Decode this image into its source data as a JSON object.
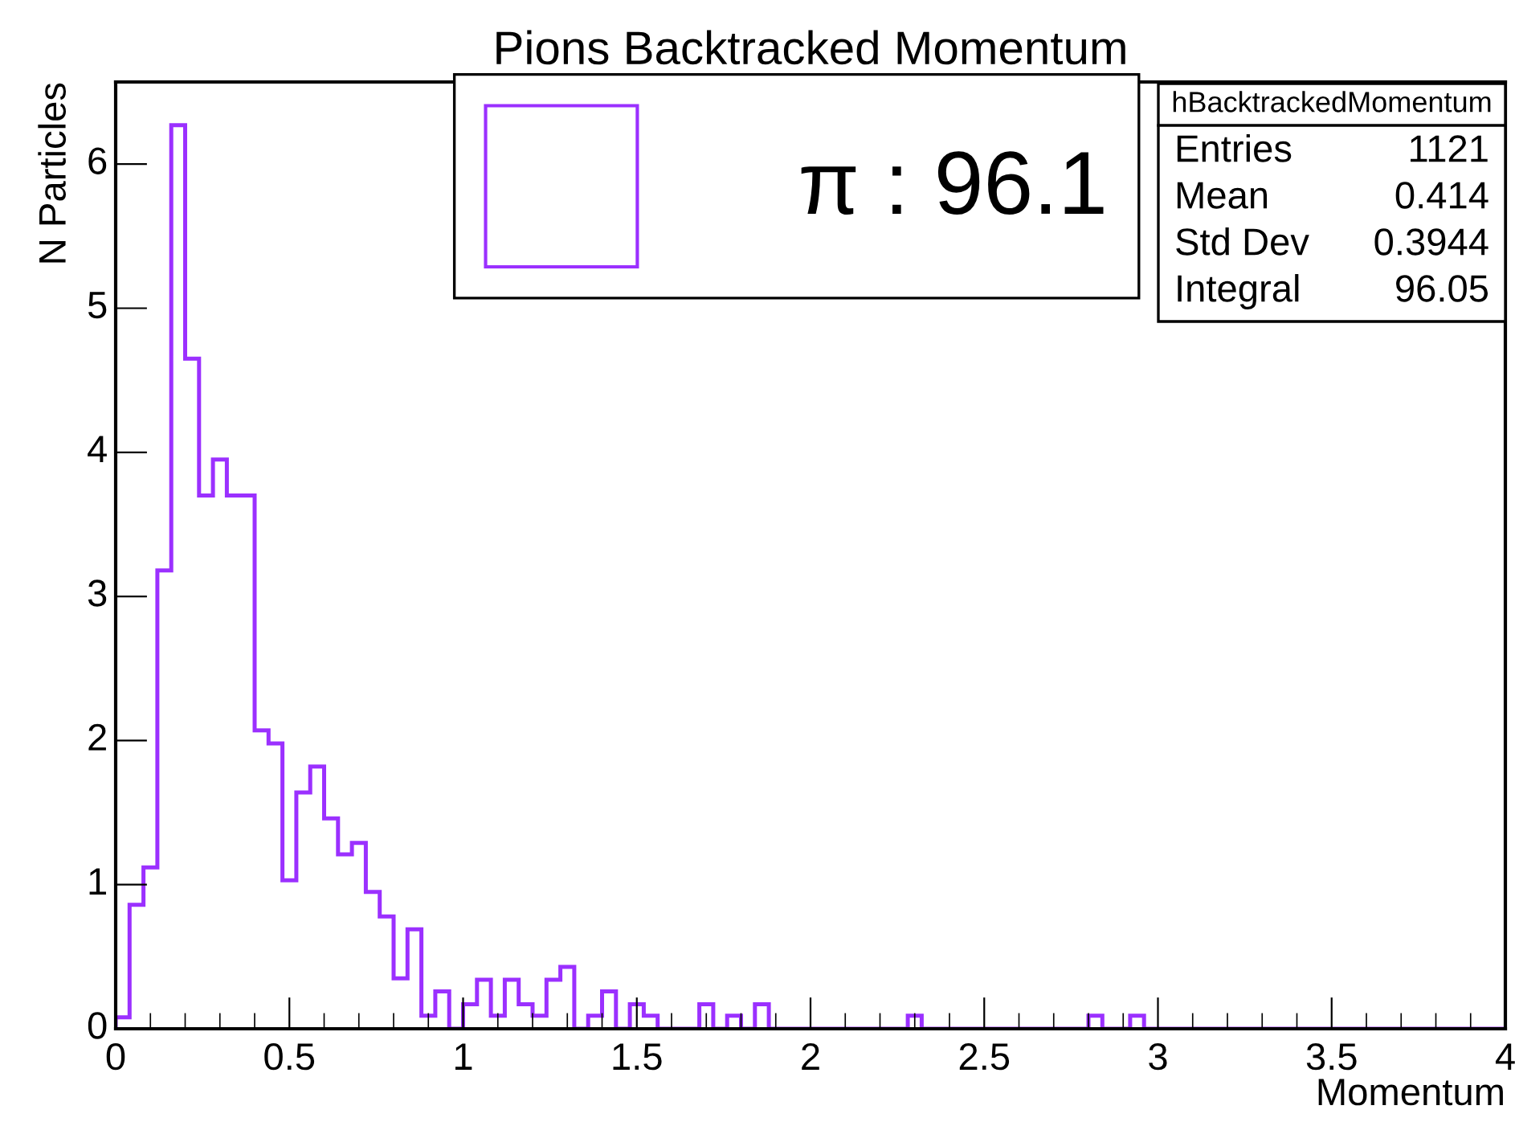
{
  "chart_data": {
    "type": "histogram",
    "title": "Pions Backtracked Momentum",
    "xlabel": "Momentum",
    "ylabel": "N Particles",
    "bins": [
      0,
      0.04,
      0.08,
      0.12,
      0.16,
      0.2,
      0.24,
      0.28,
      0.32,
      0.36,
      0.4,
      0.44,
      0.48,
      0.52,
      0.56,
      0.6,
      0.64,
      0.68,
      0.72,
      0.76,
      0.8,
      0.84,
      0.88,
      0.92,
      0.96,
      1,
      1.04,
      1.08,
      1.12,
      1.16,
      1.2,
      1.24,
      1.28,
      1.32,
      1.36,
      1.4,
      1.44,
      1.48,
      1.52,
      1.56,
      1.6,
      1.64,
      1.68,
      1.72,
      1.76,
      1.8,
      1.84,
      1.88,
      1.92,
      1.96,
      2,
      2.04,
      2.08,
      2.12,
      2.16,
      2.2,
      2.24,
      2.28,
      2.32,
      2.36,
      2.4,
      2.44,
      2.48,
      2.52,
      2.56,
      2.6,
      2.64,
      2.68,
      2.72,
      2.76,
      2.8,
      2.84,
      2.88,
      2.92,
      2.96,
      3,
      3.04,
      3.08,
      3.12,
      3.16,
      3.2,
      3.24,
      3.28,
      3.32,
      3.36,
      3.4,
      3.44,
      3.48,
      3.52,
      3.56,
      3.6,
      3.64,
      3.68,
      3.72,
      3.76,
      3.8,
      3.84,
      3.88,
      3.92,
      3.96,
      4
    ],
    "series": [
      {
        "name": "π : 96.1",
        "color": "#9b30ff",
        "values": [
          0.08,
          0.86,
          1.12,
          3.18,
          6.27,
          4.65,
          3.7,
          3.95,
          3.7,
          3.7,
          2.07,
          1.98,
          1.03,
          1.64,
          1.82,
          1.46,
          1.21,
          1.29,
          0.95,
          0.78,
          0.35,
          0.69,
          0.09,
          0.26,
          0,
          0.17,
          0.34,
          0.09,
          0.34,
          0.17,
          0.09,
          0.34,
          0.43,
          0,
          0.09,
          0.26,
          0,
          0.17,
          0.09,
          0,
          0,
          0,
          0.17,
          0,
          0.09,
          0,
          0.17,
          0,
          0,
          0,
          0,
          0,
          0,
          0,
          0,
          0,
          0,
          0.09,
          0,
          0,
          0,
          0,
          0,
          0,
          0,
          0,
          0,
          0,
          0,
          0,
          0.09,
          0,
          0,
          0.09,
          0,
          0,
          0,
          0,
          0,
          0,
          0,
          0,
          0,
          0,
          0,
          0,
          0,
          0,
          0,
          0,
          0,
          0,
          0,
          0,
          0,
          0,
          0,
          0,
          0,
          0
        ]
      }
    ],
    "xlim": [
      0,
      4
    ],
    "xticks": [
      0,
      0.5,
      1,
      1.5,
      2,
      2.5,
      3,
      3.5,
      4
    ],
    "ylim": [
      0,
      6.57
    ],
    "yticks": [
      0,
      1,
      2,
      3,
      4,
      5,
      6
    ],
    "grid": false,
    "legend": "top",
    "annotations": [
      "hBacktrackedMomentum",
      "Entries 1121",
      "Mean 0.414",
      "Std Dev 0.3944",
      "Integral 96.05"
    ]
  }
}
